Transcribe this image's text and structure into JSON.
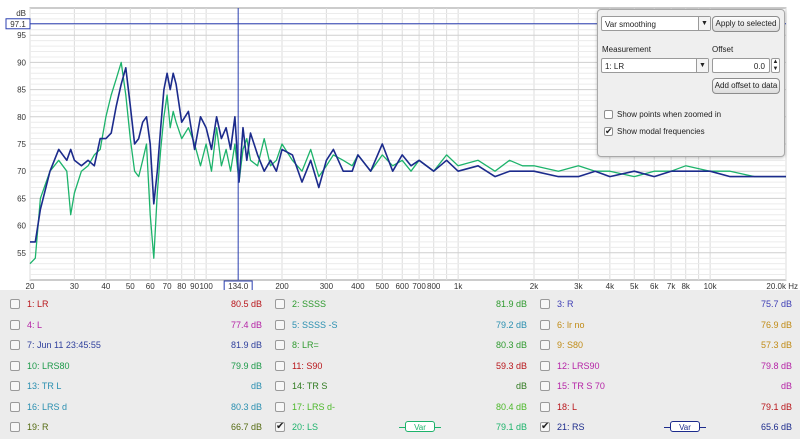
{
  "chart_data": {
    "type": "line",
    "ylabel": "dB",
    "xscale": "log",
    "xlim": [
      20,
      20000
    ],
    "ylim": [
      50,
      100
    ],
    "yticks": [
      55,
      60,
      65,
      70,
      75,
      80,
      85,
      90,
      95
    ],
    "xtick_labels": [
      {
        "v": 20,
        "t": "20"
      },
      {
        "v": 30,
        "t": "30"
      },
      {
        "v": 40,
        "t": "40"
      },
      {
        "v": 50,
        "t": "50"
      },
      {
        "v": 60,
        "t": "60"
      },
      {
        "v": 70,
        "t": "70"
      },
      {
        "v": 80,
        "t": "80"
      },
      {
        "v": 90,
        "t": "90"
      },
      {
        "v": 100,
        "t": "100"
      },
      {
        "v": 200,
        "t": "200"
      },
      {
        "v": 300,
        "t": "300"
      },
      {
        "v": 400,
        "t": "400"
      },
      {
        "v": 500,
        "t": "500"
      },
      {
        "v": 600,
        "t": "600"
      },
      {
        "v": 700,
        "t": "700"
      },
      {
        "v": 800,
        "t": "800"
      },
      {
        "v": 1000,
        "t": "1k"
      },
      {
        "v": 2000,
        "t": "2k"
      },
      {
        "v": 3000,
        "t": "3k"
      },
      {
        "v": 4000,
        "t": "4k"
      },
      {
        "v": 5000,
        "t": "5k"
      },
      {
        "v": 6000,
        "t": "6k"
      },
      {
        "v": 7000,
        "t": "7k"
      },
      {
        "v": 8000,
        "t": "8k"
      },
      {
        "v": 10000,
        "t": "10k"
      },
      {
        "v": 20000,
        "t": "20.0k Hz"
      }
    ],
    "cursor": {
      "x": 134.0,
      "x_label": "134.0",
      "y": 97.1,
      "y_label": "97.1"
    },
    "series": [
      {
        "color": "#1db36b",
        "x": [
          20,
          21,
          22,
          24,
          26,
          28,
          29,
          30,
          32,
          34,
          36,
          38,
          40,
          42,
          44,
          46,
          48,
          50,
          52,
          54,
          56,
          58,
          60,
          62,
          64,
          66,
          68,
          70,
          72,
          74,
          76,
          80,
          85,
          90,
          95,
          100,
          105,
          110,
          115,
          120,
          125,
          130,
          135,
          140,
          145,
          150,
          160,
          170,
          180,
          190,
          200,
          220,
          240,
          260,
          280,
          300,
          320,
          350,
          380,
          400,
          450,
          500,
          550,
          600,
          650,
          700,
          800,
          900,
          1000,
          1200,
          1400,
          1600,
          1800,
          2000,
          2500,
          3000,
          3500,
          4000,
          5000,
          6000,
          7000,
          8000,
          10000,
          12000,
          15000,
          20000
        ],
        "y": [
          53,
          54,
          65,
          70,
          72,
          70,
          62,
          66,
          70,
          71,
          73,
          74,
          80,
          84,
          87,
          90,
          84,
          76,
          70,
          69,
          72,
          75,
          62,
          54,
          66,
          74,
          80,
          84,
          78,
          81,
          79,
          76,
          78,
          75,
          71,
          75,
          70,
          78,
          71,
          74,
          70,
          75,
          68,
          74,
          76,
          72,
          71,
          76,
          71,
          72,
          75,
          72,
          70,
          74,
          69,
          71,
          73,
          72,
          71,
          73,
          70,
          73,
          71,
          72,
          70,
          72,
          70,
          73,
          71,
          72,
          70,
          72,
          71,
          71,
          70,
          71,
          70,
          70,
          69,
          70,
          70,
          71,
          70,
          70,
          69,
          69
        ]
      },
      {
        "color": "#1c2b8c",
        "x": [
          20,
          21,
          22,
          24,
          26,
          28,
          29,
          30,
          32,
          34,
          36,
          38,
          40,
          42,
          44,
          46,
          48,
          50,
          52,
          54,
          56,
          58,
          60,
          62,
          64,
          66,
          68,
          70,
          72,
          74,
          76,
          80,
          85,
          90,
          95,
          100,
          105,
          110,
          115,
          120,
          125,
          130,
          135,
          140,
          145,
          150,
          160,
          170,
          180,
          190,
          200,
          220,
          240,
          260,
          280,
          300,
          320,
          350,
          380,
          400,
          450,
          500,
          550,
          600,
          650,
          700,
          800,
          900,
          1000,
          1200,
          1400,
          1600,
          1800,
          2000,
          2500,
          3000,
          3500,
          4000,
          5000,
          6000,
          7000,
          8000,
          10000,
          12000,
          15000,
          20000
        ],
        "y": [
          57,
          57,
          63,
          70,
          74,
          72,
          74,
          72,
          71,
          72,
          71,
          76,
          76,
          77,
          82,
          86,
          89,
          82,
          75,
          76,
          79,
          80,
          75,
          64,
          70,
          78,
          85,
          88,
          85,
          88,
          86,
          79,
          81,
          74,
          80,
          78,
          74,
          80,
          76,
          78,
          74,
          80,
          68,
          78,
          72,
          77,
          73,
          70,
          72,
          70,
          74,
          73,
          68,
          72,
          67,
          72,
          74,
          70,
          70,
          73,
          70,
          75,
          70,
          73,
          71,
          72,
          70,
          72,
          70,
          71,
          69,
          70,
          70,
          70,
          69,
          69,
          70,
          69,
          70,
          69,
          70,
          70,
          70,
          69,
          69,
          69
        ]
      }
    ]
  },
  "panel": {
    "smoothing": "Var smoothing",
    "apply_label": "Apply to selected",
    "measurement_label": "Measurement",
    "measurement_value": "1: LR",
    "offset_label": "Offset",
    "offset_value": "0.0",
    "add_offset_label": "Add offset to data",
    "show_points_label": "Show points when zoomed in",
    "show_modal_label": "Show modal frequencies",
    "show_points_checked": false,
    "show_modal_checked": true
  },
  "legend": [
    {
      "name": "1: LR",
      "value": "80.5 dB",
      "color": "#b8161b",
      "checked": false
    },
    {
      "name": "2: SSSS",
      "value": "81.9 dB",
      "color": "#2f9a2f",
      "checked": false
    },
    {
      "name": "3: R",
      "value": "75.7 dB",
      "color": "#3d3db5",
      "checked": false
    },
    {
      "name": "4: L",
      "value": "77.4 dB",
      "color": "#b523a6",
      "checked": false
    },
    {
      "name": "5: SSSS -S",
      "value": "79.2 dB",
      "color": "#2a8fb0",
      "checked": false
    },
    {
      "name": "6: lr no",
      "value": "76.9 dB",
      "color": "#c08b16",
      "checked": false
    },
    {
      "name": "7: Jun 11 23:45:55",
      "value": "81.9 dB",
      "color": "#2e3f9c",
      "checked": false
    },
    {
      "name": "8: LR=",
      "value": "80.3 dB",
      "color": "#2f9a2f",
      "checked": false
    },
    {
      "name": "9: S80",
      "value": "57.3 dB",
      "color": "#c08b16",
      "checked": false
    },
    {
      "name": "10: LRS80",
      "value": "79.9 dB",
      "color": "#1d9a4a",
      "checked": false
    },
    {
      "name": "11: S90",
      "value": "59.3 dB",
      "color": "#b8161b",
      "checked": false
    },
    {
      "name": "12: LRS90",
      "value": "79.8 dB",
      "color": "#b523a6",
      "checked": false
    },
    {
      "name": "13: TR L",
      "value": "dB",
      "color": "#2a8fb0",
      "checked": false
    },
    {
      "name": "14: TR S",
      "value": "dB",
      "color": "#2f7a1f",
      "checked": false
    },
    {
      "name": "15: TR S 70",
      "value": "dB",
      "color": "#b523a6",
      "checked": false
    },
    {
      "name": "16: LRS d",
      "value": "80.3 dB",
      "color": "#2a8fb0",
      "checked": false
    },
    {
      "name": "17: LRS d-",
      "value": "80.4 dB",
      "color": "#4cb82a",
      "checked": false
    },
    {
      "name": "18: L",
      "value": "79.1 dB",
      "color": "#b8161b",
      "checked": false
    },
    {
      "name": "19: R",
      "value": "66.7 dB",
      "color": "#556b12",
      "checked": false
    },
    {
      "name": "20: LS",
      "value": "79.1 dB",
      "color": "#1db36b",
      "checked": true,
      "badge": "Var"
    },
    {
      "name": "21: RS",
      "value": "65.6 dB",
      "color": "#1c2b8c",
      "checked": true,
      "badge": "Var"
    }
  ]
}
